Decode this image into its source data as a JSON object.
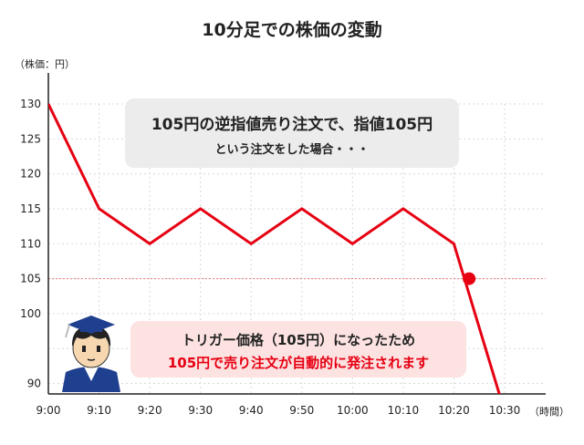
{
  "title": "10分足での株価の変動",
  "colors": {
    "line": "#e60012",
    "trigger_line": "#f08a8a",
    "grid": "#d9d9d9",
    "note_gray": "#ececec",
    "note_pink": "#fde2e2"
  },
  "icons": {
    "person": "student-avatar-icon"
  },
  "notes": {
    "order": {
      "line1": "105円の逆指値売り注文で、指値105円",
      "line2": "という注文をした場合・・・"
    },
    "trigger": {
      "line1": "トリガー価格（105円）になったため",
      "line2": "105円で売り注文が自動的に発注されます"
    }
  },
  "chart_data": {
    "type": "line",
    "title": "10分足での株価の変動",
    "ylabel": "（株価：円）",
    "xlabel": "（時間）",
    "x_ticks": [
      "9:00",
      "9:10",
      "9:20",
      "9:30",
      "9:40",
      "9:50",
      "10:00",
      "10:10",
      "10:20",
      "10:30"
    ],
    "y_ticks": [
      90,
      95,
      100,
      105,
      110,
      115,
      120,
      125,
      130
    ],
    "y_tick_labels": [
      "90",
      "",
      "100",
      "105",
      "110",
      "115",
      "120",
      "125",
      "130"
    ],
    "ylim": [
      88.5,
      130
    ],
    "grid": true,
    "series": [
      {
        "x": [
          "9:00",
          "9:10",
          "9:20",
          "9:30",
          "9:40",
          "9:50",
          "10:00",
          "10:10",
          "10:20",
          "10:30"
        ],
        "values": [
          130,
          115,
          110,
          115,
          110,
          115,
          110,
          115,
          110,
          86
        ]
      }
    ],
    "trigger_price": 105,
    "trigger_time": "10:23"
  }
}
